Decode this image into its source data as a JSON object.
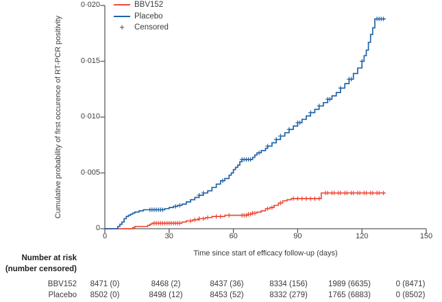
{
  "chart_data": {
    "type": "line",
    "subtype": "kaplan-meier-cumulative-incidence-step-curves",
    "title": "",
    "xlabel": "Time since start of efficacy follow-up (days)",
    "ylabel": "Cumulative probability of first occurence of RT-PCR positivity",
    "xlim": [
      0,
      150
    ],
    "ylim": [
      0,
      0.02
    ],
    "grid": false,
    "axis_color": "#595a5c",
    "text_color": "#3b3b3b",
    "x_ticks": [
      {
        "value": 0,
        "label": "0"
      },
      {
        "value": 30,
        "label": "30"
      },
      {
        "value": 60,
        "label": "60"
      },
      {
        "value": 90,
        "label": "90"
      },
      {
        "value": 120,
        "label": "120"
      },
      {
        "value": 150,
        "label": "150"
      }
    ],
    "y_ticks": [
      {
        "value": 0,
        "label": "0"
      },
      {
        "value": 0.005,
        "label": "0·005"
      },
      {
        "value": 0.01,
        "label": "0·010"
      },
      {
        "value": 0.015,
        "label": "0·015"
      },
      {
        "value": 0.02,
        "label": "0·020"
      }
    ],
    "legend": {
      "position": "top-left-inside",
      "plus_glyph": "+",
      "items": [
        {
          "label": "BBV152",
          "marker": "line"
        },
        {
          "label": "Placebo",
          "marker": "line"
        },
        {
          "label": "Censored",
          "marker": "plus"
        }
      ]
    },
    "series": [
      {
        "name": "BBV152",
        "color": "#ed4a36",
        "steps": [
          [
            0,
            0
          ],
          [
            13,
            0.0001
          ],
          [
            14,
            0.0002
          ],
          [
            20,
            0.0003
          ],
          [
            21,
            0.0004
          ],
          [
            22,
            0.0005
          ],
          [
            36,
            0.0006
          ],
          [
            38,
            0.0007
          ],
          [
            41,
            0.0008
          ],
          [
            44,
            0.0009
          ],
          [
            47,
            0.001
          ],
          [
            50,
            0.0011
          ],
          [
            56,
            0.0012
          ],
          [
            67,
            0.0013
          ],
          [
            69,
            0.0014
          ],
          [
            71,
            0.0015
          ],
          [
            73,
            0.0016
          ],
          [
            75,
            0.0018
          ],
          [
            77,
            0.0019
          ],
          [
            79,
            0.0021
          ],
          [
            81,
            0.0023
          ],
          [
            83,
            0.0025
          ],
          [
            85,
            0.0026
          ],
          [
            87,
            0.0027
          ],
          [
            101,
            0.0032
          ],
          [
            131,
            0.0032
          ]
        ],
        "censored_days": [
          23,
          24,
          25,
          26,
          27,
          28,
          29,
          30,
          31,
          32,
          33,
          34,
          35,
          40,
          42,
          44,
          46,
          48,
          52,
          54,
          58,
          64,
          65,
          66,
          67,
          68,
          69,
          70,
          76,
          78,
          82,
          88,
          90,
          92,
          94,
          96,
          98,
          100,
          103,
          104,
          106,
          107,
          109,
          110,
          112,
          113,
          115,
          116,
          118,
          119,
          121,
          122,
          124,
          125,
          127,
          128,
          130
        ]
      },
      {
        "name": "Placebo",
        "color": "#2063a9",
        "steps": [
          [
            0,
            0
          ],
          [
            6,
            0.0002
          ],
          [
            7,
            0.0004
          ],
          [
            8,
            0.0006
          ],
          [
            9,
            0.0009
          ],
          [
            10,
            0.0011
          ],
          [
            11,
            0.0012
          ],
          [
            12,
            0.0013
          ],
          [
            13,
            0.0014
          ],
          [
            14,
            0.0015
          ],
          [
            16,
            0.0016
          ],
          [
            18,
            0.0017
          ],
          [
            28,
            0.0018
          ],
          [
            30,
            0.0019
          ],
          [
            32,
            0.002
          ],
          [
            34,
            0.0021
          ],
          [
            36,
            0.0022
          ],
          [
            38,
            0.0024
          ],
          [
            40,
            0.0026
          ],
          [
            42,
            0.0028
          ],
          [
            44,
            0.003
          ],
          [
            46,
            0.0032
          ],
          [
            48,
            0.0034
          ],
          [
            50,
            0.0037
          ],
          [
            52,
            0.004
          ],
          [
            54,
            0.0043
          ],
          [
            56,
            0.0045
          ],
          [
            58,
            0.0048
          ],
          [
            59,
            0.005
          ],
          [
            60,
            0.0053
          ],
          [
            61,
            0.0055
          ],
          [
            62,
            0.0057
          ],
          [
            63,
            0.006
          ],
          [
            64,
            0.0062
          ],
          [
            69,
            0.0064
          ],
          [
            70,
            0.0066
          ],
          [
            71,
            0.0068
          ],
          [
            73,
            0.007
          ],
          [
            75,
            0.0072
          ],
          [
            76,
            0.0074
          ],
          [
            78,
            0.0077
          ],
          [
            80,
            0.008
          ],
          [
            82,
            0.0083
          ],
          [
            84,
            0.0086
          ],
          [
            86,
            0.0089
          ],
          [
            88,
            0.0092
          ],
          [
            90,
            0.0095
          ],
          [
            92,
            0.0098
          ],
          [
            94,
            0.0101
          ],
          [
            96,
            0.0104
          ],
          [
            98,
            0.0107
          ],
          [
            100,
            0.011
          ],
          [
            102,
            0.0113
          ],
          [
            104,
            0.0116
          ],
          [
            106,
            0.0119
          ],
          [
            108,
            0.0122
          ],
          [
            110,
            0.0126
          ],
          [
            112,
            0.013
          ],
          [
            114,
            0.0134
          ],
          [
            116,
            0.0139
          ],
          [
            118,
            0.0144
          ],
          [
            120,
            0.015
          ],
          [
            121,
            0.0155
          ],
          [
            122,
            0.016
          ],
          [
            123,
            0.0167
          ],
          [
            124,
            0.0174
          ],
          [
            125,
            0.018
          ],
          [
            126,
            0.0188
          ],
          [
            131,
            0.0188
          ]
        ],
        "censored_days": [
          21,
          22,
          23,
          24,
          25,
          26,
          27,
          33,
          35,
          44,
          46,
          55,
          64,
          65,
          66,
          67,
          68,
          72,
          76,
          80,
          82,
          86,
          90,
          91,
          96,
          100,
          104,
          105,
          110,
          114,
          115,
          120,
          127,
          128,
          129,
          130
        ]
      }
    ]
  },
  "risk_table": {
    "header_line1": "Number at risk",
    "header_line2": "(number censored)",
    "rows": [
      {
        "label": "BBV152",
        "values": [
          "8471 (0)",
          "8468 (2)",
          "8437 (36)",
          "8334 (156)",
          "1989 (6635)",
          "0 (8471)"
        ]
      },
      {
        "label": "Placebo",
        "values": [
          "8502 (0)",
          "8498 (12)",
          "8453 (52)",
          "8332 (279)",
          "1765 (6883)",
          "0 (8502)"
        ]
      }
    ]
  }
}
